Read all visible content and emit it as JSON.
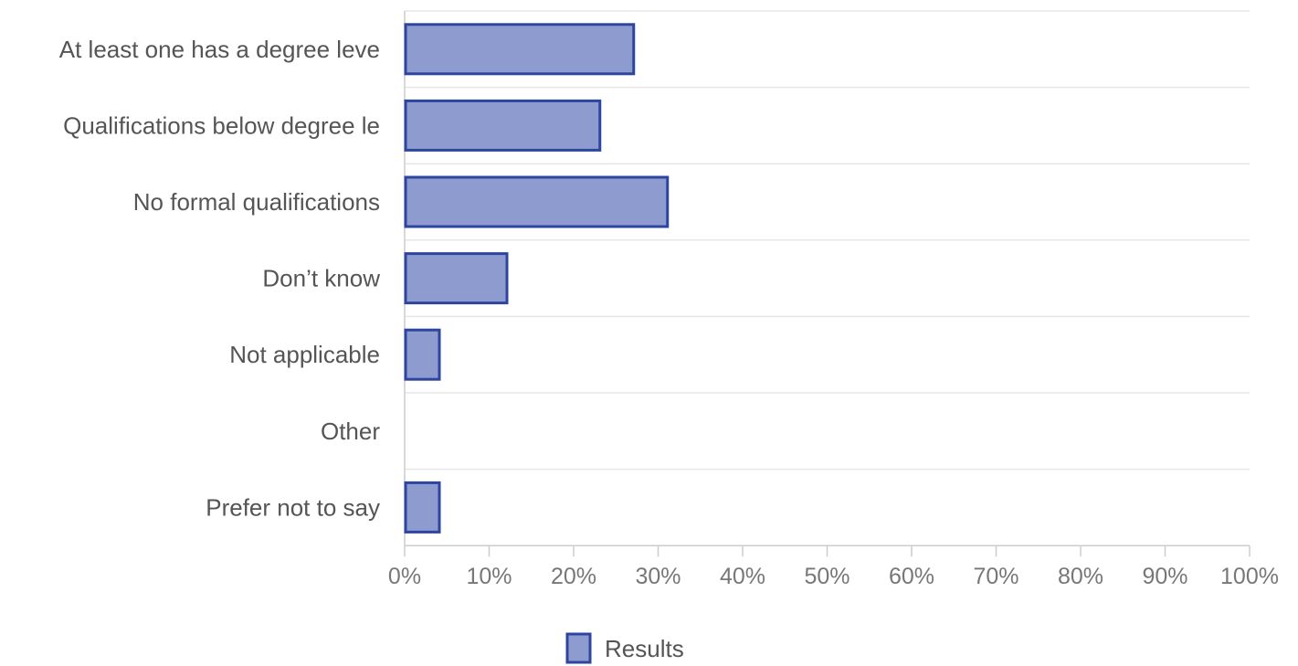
{
  "chart_data": {
    "type": "bar",
    "orientation": "horizontal",
    "categories": [
      "At least one has a degree leve",
      "Qualifications below degree le",
      "No formal qualifications",
      "Don’t know",
      "Not applicable",
      "Other",
      "Prefer not to say"
    ],
    "series": [
      {
        "name": "Results",
        "values": [
          27,
          23,
          31,
          12,
          4,
          0,
          4
        ]
      }
    ],
    "x_ticks": [
      "0%",
      "10%",
      "20%",
      "30%",
      "40%",
      "50%",
      "60%",
      "70%",
      "80%",
      "90%",
      "100%"
    ],
    "xlim": [
      0,
      100
    ],
    "unit": "%",
    "grid": true,
    "legend_position": "bottom",
    "colors": {
      "bar_fill": "#8e9bcf",
      "bar_stroke": "#2e45a0",
      "grid": "#e6e6e6",
      "axis": "#cccccc"
    }
  }
}
